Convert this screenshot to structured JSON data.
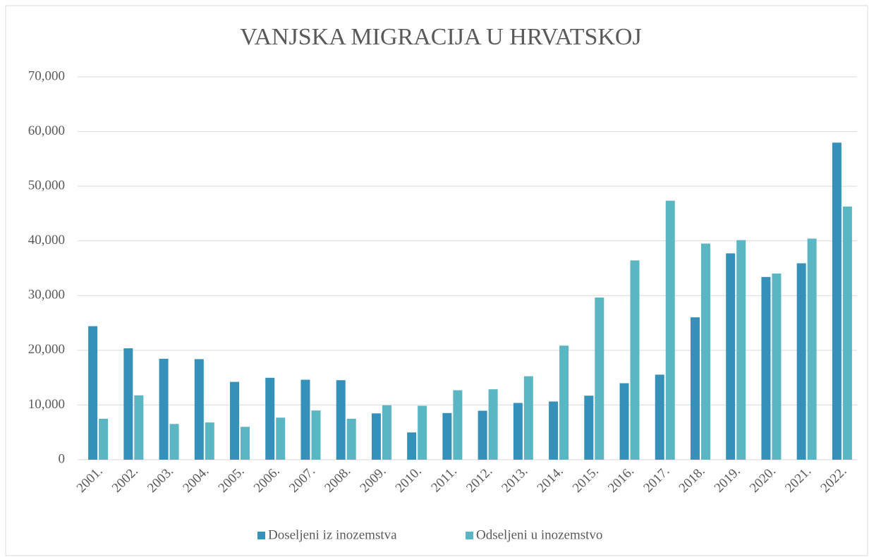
{
  "chart_data": {
    "type": "bar",
    "title": "VANJSKA MIGRACIJA U HRVATSKOJ",
    "categories": [
      "2001.",
      "2002.",
      "2003.",
      "2004.",
      "2005.",
      "2006.",
      "2007.",
      "2008.",
      "2009.",
      "2010.",
      "2011.",
      "2012.",
      "2013.",
      "2014.",
      "2015.",
      "2016.",
      "2017.",
      "2018.",
      "2019.",
      "2020.",
      "2021.",
      "2022."
    ],
    "series": [
      {
        "name": "Doseljeni iz inozemstva",
        "color": "#3591b9",
        "values": [
          24415,
          20365,
          18455,
          18383,
          14230,
          14978,
          14622,
          14541,
          8468,
          4985,
          8534,
          8959,
          10378,
          10638,
          11706,
          13985,
          15553,
          26029,
          37726,
          33414,
          35912,
          57972
        ]
      },
      {
        "name": "Odseljeni u inozemstvo",
        "color": "#5bb6c3",
        "values": [
          7488,
          11767,
          6534,
          6812,
          6012,
          7692,
          9002,
          7488,
          9940,
          9860,
          12699,
          12877,
          15262,
          20858,
          29651,
          36436,
          47352,
          39515,
          40148,
          34046,
          40424,
          46287
        ]
      }
    ],
    "ylim": [
      0,
      70000
    ],
    "yticks": [
      {
        "value": 0,
        "label": "0"
      },
      {
        "value": 10000,
        "label": "10,000"
      },
      {
        "value": 20000,
        "label": "20,000"
      },
      {
        "value": 30000,
        "label": "30,000"
      },
      {
        "value": 40000,
        "label": "40,000"
      },
      {
        "value": 50000,
        "label": "50,000"
      },
      {
        "value": 60000,
        "label": "60,000"
      },
      {
        "value": 70000,
        "label": "70,000"
      }
    ],
    "grid": true,
    "legend": "bottom"
  }
}
